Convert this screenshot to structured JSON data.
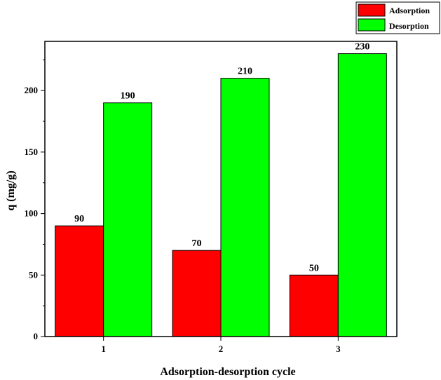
{
  "chart_data": {
    "type": "bar",
    "title": "",
    "xlabel": "Adsorption-desorption cycle",
    "ylabel": "q (mg/g)",
    "categories": [
      "1",
      "2",
      "3"
    ],
    "series": [
      {
        "name": "Adsorption",
        "values": [
          90,
          70,
          50
        ],
        "color": "#ff0000"
      },
      {
        "name": "Desorption",
        "values": [
          190,
          210,
          230
        ],
        "color": "#00ff00"
      }
    ],
    "ylim": [
      0,
      240
    ],
    "yticks": [
      0,
      50,
      100,
      150,
      200
    ],
    "data_labels": true,
    "legend_position": "top-right",
    "grid": false
  }
}
